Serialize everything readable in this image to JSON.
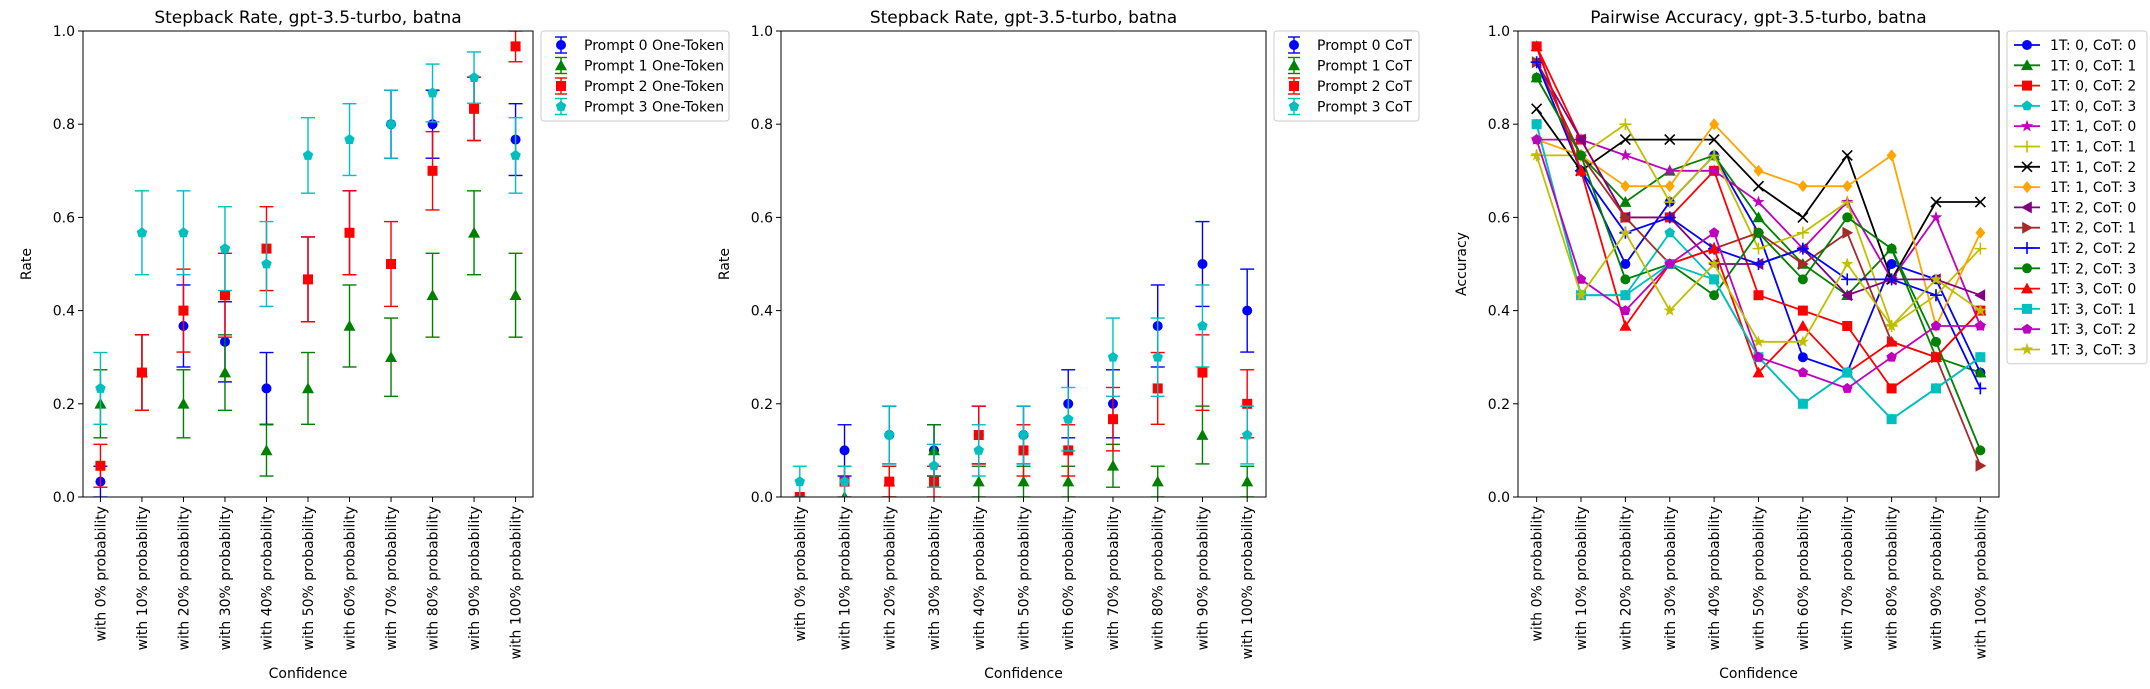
{
  "figure": {
    "colors": {
      "blue": "#0000ff",
      "green": "#008000",
      "red": "#ff0000",
      "cyan": "#00bfbf",
      "magenta": "#bf00bf",
      "olive": "#bfbf00",
      "black": "#000000",
      "orange": "#ffa500",
      "purple": "#800080",
      "brown": "#a52a2a"
    }
  },
  "chart_data": [
    {
      "type": "scatter",
      "title": "Stepback Rate, gpt-3.5-turbo, batna",
      "xlabel": "Confidence",
      "ylabel": "Rate",
      "ylim": [
        0,
        1.0
      ],
      "yticks": [
        "0.0",
        "0.2",
        "0.4",
        "0.6",
        "0.8",
        "1.0"
      ],
      "grid": false,
      "legend_position": "outside upper right",
      "categories": [
        "with 0% probability",
        "with 10% probability",
        "with 20% probability",
        "with 30% probability",
        "with 40% probability",
        "with 50% probability",
        "with 60% probability",
        "with 70% probability",
        "with 80% probability",
        "with 90% probability",
        "with 100% probability"
      ],
      "series": [
        {
          "name": "Prompt 0 One-Token",
          "color": "#0000ff",
          "marker": "circle",
          "values": [
            0.033,
            0.267,
            0.367,
            0.333,
            0.233,
            0.467,
            0.567,
            0.8,
            0.8,
            0.833,
            0.767
          ],
          "err": [
            0.033,
            0.081,
            0.088,
            0.086,
            0.077,
            0.091,
            0.09,
            0.073,
            0.073,
            0.068,
            0.077
          ]
        },
        {
          "name": "Prompt 1 One-Token",
          "color": "#008000",
          "marker": "triangle",
          "values": [
            0.2,
            0.267,
            0.2,
            0.267,
            0.1,
            0.233,
            0.367,
            0.3,
            0.433,
            0.567,
            0.433
          ],
          "err": [
            0.073,
            0.081,
            0.073,
            0.081,
            0.055,
            0.077,
            0.088,
            0.084,
            0.09,
            0.09,
            0.09
          ]
        },
        {
          "name": "Prompt 2 One-Token",
          "color": "#ff0000",
          "marker": "square",
          "values": [
            0.067,
            0.267,
            0.4,
            0.433,
            0.533,
            0.467,
            0.567,
            0.5,
            0.7,
            0.833,
            0.967
          ],
          "err": [
            0.046,
            0.081,
            0.089,
            0.09,
            0.09,
            0.091,
            0.09,
            0.091,
            0.084,
            0.068,
            0.033
          ]
        },
        {
          "name": "Prompt 3 One-Token",
          "color": "#00bfbf",
          "marker": "pentagon",
          "values": [
            0.233,
            0.567,
            0.567,
            0.533,
            0.5,
            0.733,
            0.767,
            0.8,
            0.867,
            0.9,
            0.733
          ],
          "err": [
            0.077,
            0.09,
            0.09,
            0.09,
            0.091,
            0.081,
            0.077,
            0.073,
            0.062,
            0.055,
            0.081
          ]
        }
      ]
    },
    {
      "type": "scatter",
      "title": "Stepback Rate, gpt-3.5-turbo, batna",
      "xlabel": "Confidence",
      "ylabel": "Rate",
      "ylim": [
        0,
        1.0
      ],
      "yticks": [
        "0.0",
        "0.2",
        "0.4",
        "0.6",
        "0.8",
        "1.0"
      ],
      "grid": false,
      "legend_position": "outside upper right",
      "categories": [
        "with 0% probability",
        "with 10% probability",
        "with 20% probability",
        "with 30% probability",
        "with 40% probability",
        "with 50% probability",
        "with 60% probability",
        "with 70% probability",
        "with 80% probability",
        "with 90% probability",
        "with 100% probability"
      ],
      "series": [
        {
          "name": "Prompt 0 CoT",
          "color": "#0000ff",
          "marker": "circle",
          "values": [
            0.0,
            0.1,
            0.133,
            0.1,
            0.133,
            0.133,
            0.2,
            0.2,
            0.367,
            0.5,
            0.4
          ],
          "err": [
            0.0,
            0.055,
            0.062,
            0.055,
            0.062,
            0.062,
            0.073,
            0.073,
            0.088,
            0.091,
            0.089
          ]
        },
        {
          "name": "Prompt 1 CoT",
          "color": "#008000",
          "marker": "triangle",
          "values": [
            0.0,
            0.0,
            0.033,
            0.1,
            0.033,
            0.033,
            0.033,
            0.067,
            0.033,
            0.133,
            0.033
          ],
          "err": [
            0.0,
            0.0,
            0.033,
            0.055,
            0.033,
            0.033,
            0.033,
            0.046,
            0.033,
            0.062,
            0.033
          ]
        },
        {
          "name": "Prompt 2 CoT",
          "color": "#ff0000",
          "marker": "square",
          "values": [
            0.0,
            0.033,
            0.033,
            0.033,
            0.133,
            0.1,
            0.1,
            0.167,
            0.233,
            0.267,
            0.2
          ],
          "err": [
            0.0,
            0.033,
            0.033,
            0.033,
            0.062,
            0.055,
            0.055,
            0.068,
            0.077,
            0.081,
            0.073
          ]
        },
        {
          "name": "Prompt 3 CoT",
          "color": "#00bfbf",
          "marker": "pentagon",
          "values": [
            0.033,
            0.033,
            0.133,
            0.067,
            0.1,
            0.133,
            0.167,
            0.3,
            0.3,
            0.367,
            0.133
          ],
          "err": [
            0.033,
            0.033,
            0.062,
            0.046,
            0.055,
            0.062,
            0.068,
            0.084,
            0.084,
            0.088,
            0.062
          ]
        }
      ]
    },
    {
      "type": "line",
      "title": "Pairwise Accuracy, gpt-3.5-turbo, batna",
      "xlabel": "Confidence",
      "ylabel": "Accuracy",
      "ylim": [
        0,
        1.0
      ],
      "yticks": [
        "0.0",
        "0.2",
        "0.4",
        "0.6",
        "0.8",
        "1.0"
      ],
      "grid": false,
      "legend_position": "outside upper right",
      "categories": [
        "with 0% probability",
        "with 10% probability",
        "with 20% probability",
        "with 30% probability",
        "with 40% probability",
        "with 50% probability",
        "with 60% probability",
        "with 70% probability",
        "with 80% probability",
        "with 90% probability",
        "with 100% probability"
      ],
      "series": [
        {
          "name": "1T: 0, CoT: 0",
          "color": "#0000ff",
          "marker": "circle",
          "values": [
            0.967,
            0.7,
            0.5,
            0.633,
            0.733,
            0.567,
            0.3,
            0.267,
            0.5,
            0.467,
            0.267
          ]
        },
        {
          "name": "1T: 0, CoT: 1",
          "color": "#008000",
          "marker": "triangle",
          "values": [
            0.9,
            0.733,
            0.633,
            0.7,
            0.733,
            0.6,
            0.5,
            0.433,
            0.533,
            0.3,
            0.267
          ]
        },
        {
          "name": "1T: 0, CoT: 2",
          "color": "#ff0000",
          "marker": "square",
          "values": [
            0.967,
            0.767,
            0.6,
            0.6,
            0.7,
            0.433,
            0.4,
            0.367,
            0.233,
            0.3,
            0.4
          ]
        },
        {
          "name": "1T: 0, CoT: 3",
          "color": "#00bfbf",
          "marker": "pentagon",
          "values": [
            0.8,
            0.433,
            0.433,
            0.567,
            0.467,
            0.3,
            0.2,
            0.267,
            0.167,
            0.233,
            0.3
          ]
        },
        {
          "name": "1T: 1, CoT: 0",
          "color": "#bf00bf",
          "marker": "star",
          "values": [
            0.767,
            0.767,
            0.733,
            0.7,
            0.7,
            0.633,
            0.533,
            0.633,
            0.467,
            0.6,
            0.367
          ]
        },
        {
          "name": "1T: 1, CoT: 1",
          "color": "#bfbf00",
          "marker": "plus",
          "values": [
            0.733,
            0.733,
            0.8,
            0.633,
            0.733,
            0.533,
            0.567,
            0.633,
            0.367,
            0.433,
            0.533
          ]
        },
        {
          "name": "1T: 1, CoT: 2",
          "color": "#000000",
          "marker": "x",
          "values": [
            0.833,
            0.7,
            0.767,
            0.767,
            0.767,
            0.667,
            0.6,
            0.733,
            0.467,
            0.633,
            0.633
          ]
        },
        {
          "name": "1T: 1, CoT: 3",
          "color": "#ffa500",
          "marker": "diamond",
          "values": [
            0.767,
            0.733,
            0.667,
            0.667,
            0.8,
            0.7,
            0.667,
            0.667,
            0.733,
            0.367,
            0.567
          ]
        },
        {
          "name": "1T: 2, CoT: 0",
          "color": "#800080",
          "marker": "triangle-left",
          "values": [
            0.933,
            0.767,
            0.6,
            0.6,
            0.5,
            0.5,
            0.533,
            0.433,
            0.467,
            0.467,
            0.433
          ]
        },
        {
          "name": "1T: 2, CoT: 1",
          "color": "#a52a2a",
          "marker": "triangle-right",
          "values": [
            0.933,
            0.733,
            0.6,
            0.5,
            0.533,
            0.567,
            0.5,
            0.567,
            0.333,
            0.3,
            0.067
          ]
        },
        {
          "name": "1T: 2, CoT: 2",
          "color": "#0000ff",
          "marker": "plus",
          "values": [
            0.933,
            0.7,
            0.567,
            0.6,
            0.533,
            0.5,
            0.533,
            0.467,
            0.467,
            0.433,
            0.233
          ]
        },
        {
          "name": "1T: 2, CoT: 3",
          "color": "#008000",
          "marker": "circle",
          "values": [
            0.9,
            0.733,
            0.467,
            0.5,
            0.433,
            0.567,
            0.467,
            0.6,
            0.533,
            0.333,
            0.1
          ]
        },
        {
          "name": "1T: 3, CoT: 0",
          "color": "#ff0000",
          "marker": "triangle",
          "values": [
            0.967,
            0.7,
            0.367,
            0.5,
            0.533,
            0.267,
            0.367,
            0.267,
            0.333,
            0.3,
            0.4
          ]
        },
        {
          "name": "1T: 3, CoT: 1",
          "color": "#00bfbf",
          "marker": "square",
          "values": [
            0.8,
            0.433,
            0.433,
            0.5,
            0.467,
            0.3,
            0.2,
            0.267,
            0.167,
            0.233,
            0.3
          ]
        },
        {
          "name": "1T: 3, CoT: 2",
          "color": "#bf00bf",
          "marker": "pentagon",
          "values": [
            0.767,
            0.467,
            0.4,
            0.5,
            0.567,
            0.3,
            0.267,
            0.233,
            0.3,
            0.367,
            0.367
          ]
        },
        {
          "name": "1T: 3, CoT: 3",
          "color": "#bfbf00",
          "marker": "star",
          "values": [
            0.733,
            0.433,
            0.567,
            0.4,
            0.5,
            0.333,
            0.333,
            0.5,
            0.367,
            0.467,
            0.4
          ]
        }
      ]
    }
  ]
}
